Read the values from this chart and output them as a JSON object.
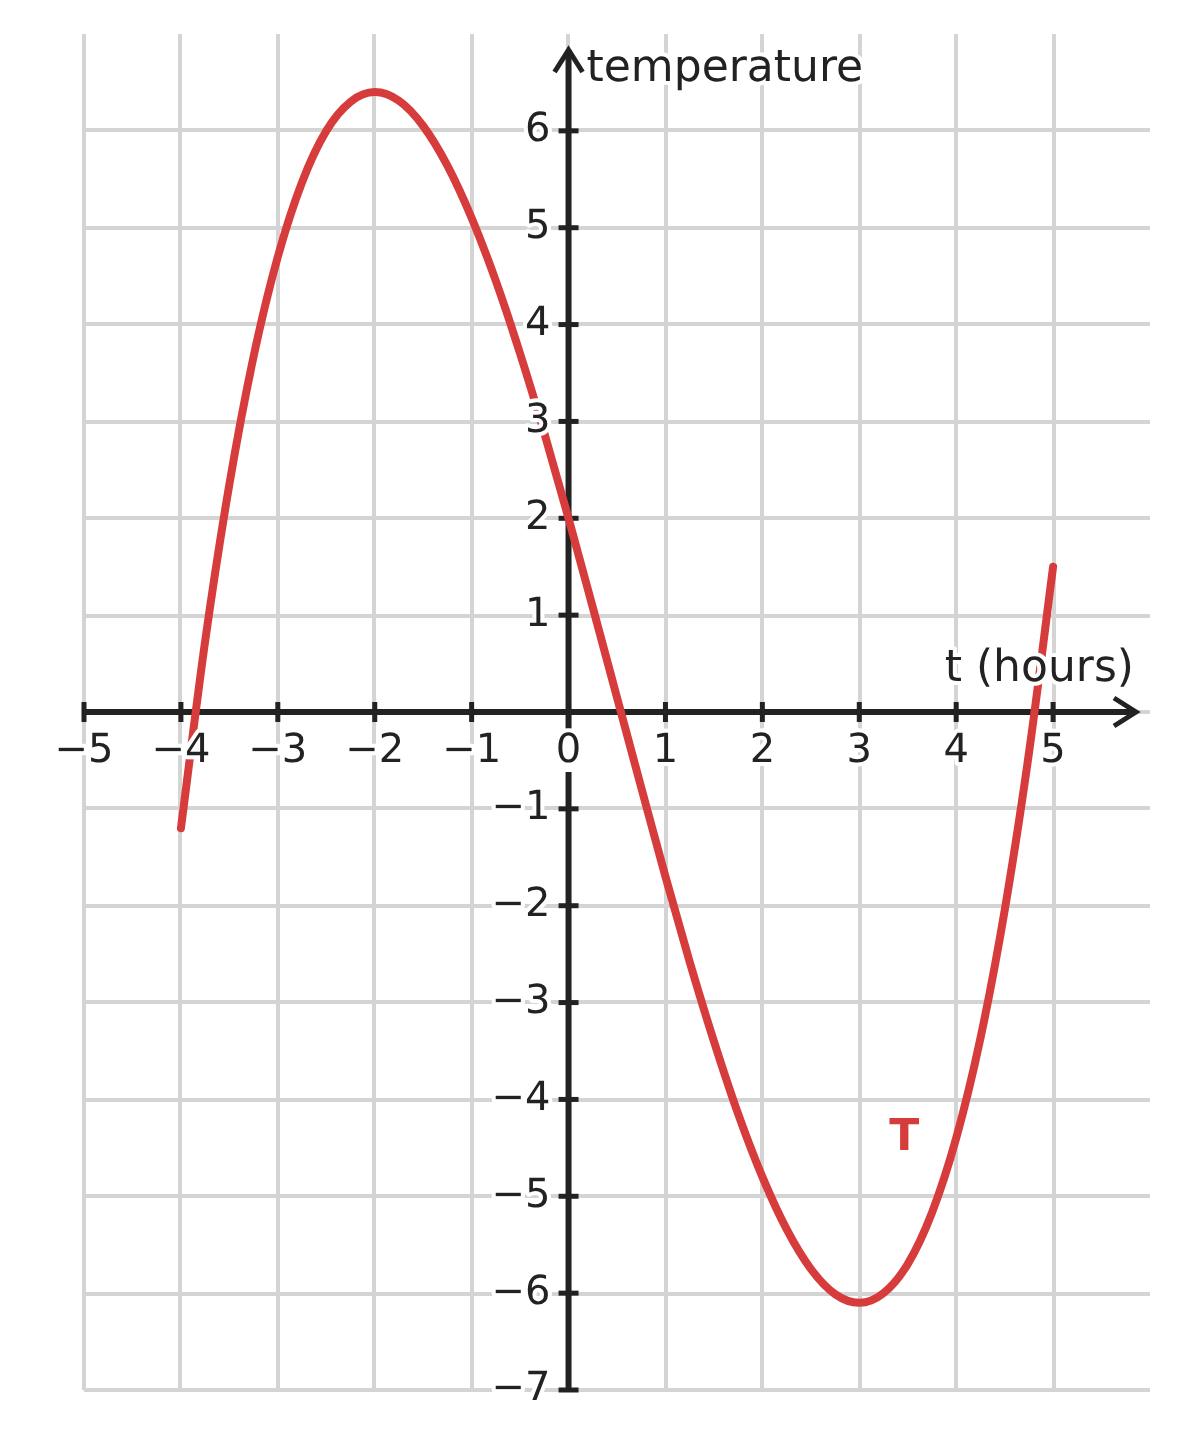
{
  "chart_data": {
    "type": "line",
    "xlabel": "t (hours)",
    "ylabel": "temperature",
    "x": [
      -4,
      -3.75,
      -3.5,
      -3.25,
      -3,
      -2.75,
      -2.5,
      -2.25,
      -2,
      -1.75,
      -1.5,
      -1.25,
      -1,
      -0.75,
      -0.5,
      -0.25,
      0,
      0.25,
      0.5,
      0.75,
      1,
      1.25,
      1.5,
      1.75,
      2,
      2.25,
      2.5,
      2.75,
      3,
      3.25,
      3.5,
      3.75,
      4,
      4.25,
      4.5,
      4.75,
      5
    ],
    "series": [
      {
        "name": "T",
        "color": "#d73c3c",
        "values": [
          -1.2,
          0.73,
          2.35,
          3.67,
          4.7,
          5.47,
          6.0,
          6.3,
          6.4,
          6.31,
          6.05,
          5.64,
          5.1,
          4.45,
          3.7,
          2.88,
          2.0,
          1.08,
          0.15,
          -0.78,
          -1.7,
          -2.58,
          -3.4,
          -4.15,
          -4.8,
          -5.34,
          -5.75,
          -6.01,
          -6.1,
          -6.0,
          -5.7,
          -5.17,
          -4.4,
          -3.37,
          -2.05,
          -0.43,
          1.5
        ]
      }
    ],
    "xlim": [
      -5,
      6
    ],
    "ylim": [
      -7,
      7
    ],
    "xticks": [
      -5,
      -4,
      -3,
      -2,
      -1,
      0,
      1,
      2,
      3,
      4,
      5
    ],
    "yticks": [
      -7,
      -6,
      -5,
      -4,
      -3,
      -2,
      -1,
      {
        "value": 0,
        "label": null
      },
      1,
      2,
      3,
      4,
      5,
      6
    ],
    "grid": true,
    "legend": false,
    "marker": "none",
    "line_style": "solid"
  }
}
